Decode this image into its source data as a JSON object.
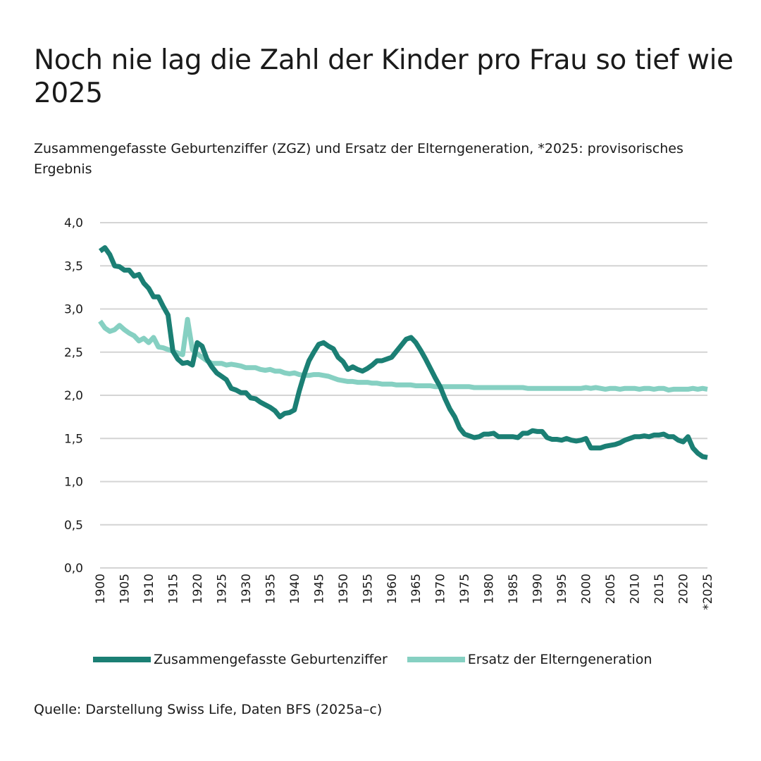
{
  "title": "Noch nie lag die Zahl der Kinder pro Frau so tief wie 2025",
  "subtitle": "Zusammengefasste Geburtenziffer (ZGZ) und Ersatz der Elterngeneration, *2025: provisorisches Ergebnis",
  "source": "Quelle: Darstellung Swiss Life, Daten BFS (2025a–c)",
  "colors": {
    "zgz": "#1b7f74",
    "ersatz": "#86d0c2",
    "grid": "#d4d4d4"
  },
  "chart_data": {
    "type": "line",
    "title": "Noch nie lag die Zahl der Kinder pro Frau so tief wie 2025",
    "xlabel": "",
    "ylabel": "",
    "xlim": [
      1900,
      2025
    ],
    "ylim": [
      0,
      4
    ],
    "y_ticks": [
      "0,0",
      "0,5",
      "1,0",
      "1,5",
      "2,0",
      "2,5",
      "3,0",
      "3,5",
      "4,0"
    ],
    "y_tick_values": [
      0,
      0.5,
      1,
      1.5,
      2,
      2.5,
      3,
      3.5,
      4
    ],
    "x_ticks": [
      "1900",
      "1905",
      "1910",
      "1915",
      "1920",
      "1925",
      "1930",
      "1935",
      "1940",
      "1945",
      "1950",
      "1955",
      "1960",
      "1965",
      "1970",
      "1975",
      "1980",
      "1985",
      "1990",
      "1995",
      "2000",
      "2005",
      "2010",
      "2015",
      "2020",
      "*2025"
    ],
    "x_tick_values": [
      1900,
      1905,
      1910,
      1915,
      1920,
      1925,
      1930,
      1935,
      1940,
      1945,
      1950,
      1955,
      1960,
      1965,
      1970,
      1975,
      1980,
      1985,
      1990,
      1995,
      2000,
      2005,
      2010,
      2015,
      2020,
      2025
    ],
    "grid": true,
    "legend_position": "bottom",
    "x": [
      1900,
      1901,
      1902,
      1903,
      1904,
      1905,
      1906,
      1907,
      1908,
      1909,
      1910,
      1911,
      1912,
      1913,
      1914,
      1915,
      1916,
      1917,
      1918,
      1919,
      1920,
      1921,
      1922,
      1923,
      1924,
      1925,
      1926,
      1927,
      1928,
      1929,
      1930,
      1931,
      1932,
      1933,
      1934,
      1935,
      1936,
      1937,
      1938,
      1939,
      1940,
      1941,
      1942,
      1943,
      1944,
      1945,
      1946,
      1947,
      1948,
      1949,
      1950,
      1951,
      1952,
      1953,
      1954,
      1955,
      1956,
      1957,
      1958,
      1959,
      1960,
      1961,
      1962,
      1963,
      1964,
      1965,
      1966,
      1967,
      1968,
      1969,
      1970,
      1971,
      1972,
      1973,
      1974,
      1975,
      1976,
      1977,
      1978,
      1979,
      1980,
      1981,
      1982,
      1983,
      1984,
      1985,
      1986,
      1987,
      1988,
      1989,
      1990,
      1991,
      1992,
      1993,
      1994,
      1995,
      1996,
      1997,
      1998,
      1999,
      2000,
      2001,
      2002,
      2003,
      2004,
      2005,
      2006,
      2007,
      2008,
      2009,
      2010,
      2011,
      2012,
      2013,
      2014,
      2015,
      2016,
      2017,
      2018,
      2019,
      2020,
      2021,
      2022,
      2023,
      2024,
      2025
    ],
    "series": [
      {
        "name": "Zusammengefasste Geburtenziffer",
        "values": [
          3.67,
          3.71,
          3.63,
          3.5,
          3.49,
          3.45,
          3.45,
          3.38,
          3.4,
          3.3,
          3.24,
          3.14,
          3.14,
          3.03,
          2.93,
          2.51,
          2.42,
          2.37,
          2.38,
          2.35,
          2.61,
          2.57,
          2.42,
          2.33,
          2.26,
          2.22,
          2.18,
          2.08,
          2.06,
          2.03,
          2.03,
          1.97,
          1.96,
          1.92,
          1.89,
          1.86,
          1.82,
          1.75,
          1.79,
          1.8,
          1.83,
          2.05,
          2.24,
          2.4,
          2.5,
          2.59,
          2.61,
          2.57,
          2.54,
          2.44,
          2.39,
          2.3,
          2.33,
          2.3,
          2.28,
          2.31,
          2.35,
          2.4,
          2.4,
          2.42,
          2.44,
          2.51,
          2.58,
          2.65,
          2.67,
          2.61,
          2.52,
          2.42,
          2.31,
          2.2,
          2.1,
          1.96,
          1.84,
          1.75,
          1.62,
          1.55,
          1.53,
          1.51,
          1.52,
          1.55,
          1.55,
          1.56,
          1.52,
          1.52,
          1.52,
          1.52,
          1.51,
          1.56,
          1.56,
          1.59,
          1.58,
          1.58,
          1.51,
          1.49,
          1.49,
          1.48,
          1.5,
          1.48,
          1.47,
          1.48,
          1.5,
          1.39,
          1.39,
          1.39,
          1.41,
          1.42,
          1.43,
          1.45,
          1.48,
          1.5,
          1.52,
          1.52,
          1.53,
          1.52,
          1.54,
          1.54,
          1.55,
          1.52,
          1.52,
          1.48,
          1.46,
          1.52,
          1.39,
          1.33,
          1.29,
          1.28
        ]
      },
      {
        "name": "Ersatz der Elterngeneration",
        "values": [
          2.86,
          2.78,
          2.74,
          2.76,
          2.81,
          2.76,
          2.72,
          2.69,
          2.63,
          2.66,
          2.61,
          2.67,
          2.56,
          2.55,
          2.53,
          2.51,
          2.49,
          2.47,
          2.88,
          2.53,
          2.48,
          2.44,
          2.4,
          2.37,
          2.37,
          2.37,
          2.35,
          2.36,
          2.35,
          2.34,
          2.32,
          2.32,
          2.32,
          2.3,
          2.29,
          2.3,
          2.28,
          2.28,
          2.26,
          2.25,
          2.26,
          2.24,
          2.23,
          2.23,
          2.24,
          2.24,
          2.23,
          2.22,
          2.2,
          2.18,
          2.17,
          2.16,
          2.16,
          2.15,
          2.15,
          2.15,
          2.14,
          2.14,
          2.13,
          2.13,
          2.13,
          2.12,
          2.12,
          2.12,
          2.12,
          2.11,
          2.11,
          2.11,
          2.11,
          2.1,
          2.1,
          2.1,
          2.1,
          2.1,
          2.1,
          2.1,
          2.1,
          2.09,
          2.09,
          2.09,
          2.09,
          2.09,
          2.09,
          2.09,
          2.09,
          2.09,
          2.09,
          2.09,
          2.08,
          2.08,
          2.08,
          2.08,
          2.08,
          2.08,
          2.08,
          2.08,
          2.08,
          2.08,
          2.08,
          2.08,
          2.09,
          2.08,
          2.09,
          2.08,
          2.07,
          2.08,
          2.08,
          2.07,
          2.08,
          2.08,
          2.08,
          2.07,
          2.08,
          2.08,
          2.07,
          2.08,
          2.08,
          2.06,
          2.07,
          2.07,
          2.07,
          2.07,
          2.08,
          2.07,
          2.08,
          2.07
        ]
      }
    ]
  }
}
